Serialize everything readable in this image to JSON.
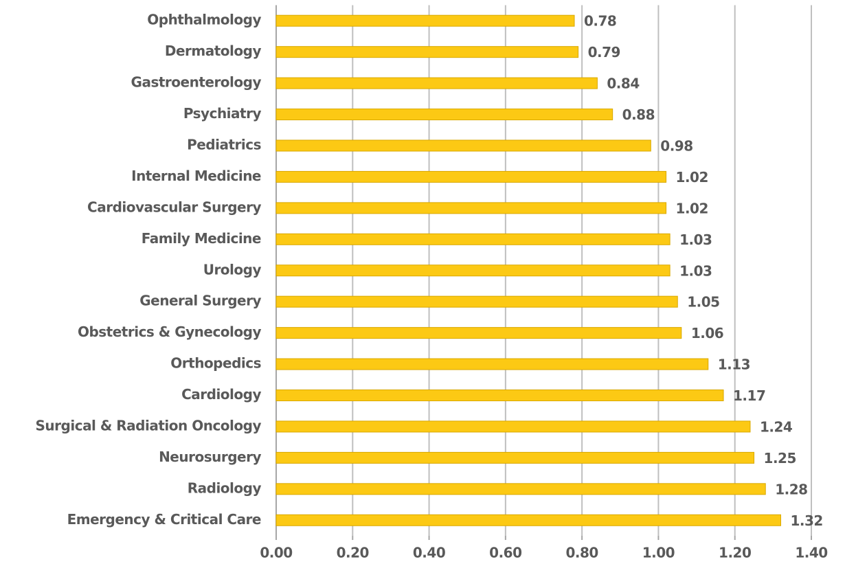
{
  "chart_data": {
    "type": "barh",
    "categories": [
      "Ophthalmology",
      "Dermatology",
      "Gastroenterology",
      "Psychiatry",
      "Pediatrics",
      "Internal Medicine",
      "Cardiovascular Surgery",
      "Family Medicine",
      "Urology",
      "General Surgery",
      "Obstetrics & Gynecology",
      "Orthopedics",
      "Cardiology",
      "Surgical & Radiation Oncology",
      "Neurosurgery",
      "Radiology",
      "Emergency & Critical Care"
    ],
    "values": [
      0.78,
      0.79,
      0.84,
      0.88,
      0.98,
      1.02,
      1.02,
      1.03,
      1.03,
      1.05,
      1.06,
      1.13,
      1.17,
      1.24,
      1.25,
      1.28,
      1.32
    ],
    "color": "#fcc914",
    "xlim": [
      0,
      1.4
    ],
    "xticks": [
      {
        "value": 0,
        "label": "0.00"
      },
      {
        "value": 0.2,
        "label": "0.20"
      },
      {
        "value": 0.4,
        "label": "0.40"
      },
      {
        "value": 0.6,
        "label": "0.60"
      },
      {
        "value": 0.8,
        "label": "0.80"
      },
      {
        "value": 1.0,
        "label": "1.00"
      },
      {
        "value": 1.2,
        "label": "1.20"
      },
      {
        "value": 1.4,
        "label": "1.40"
      }
    ],
    "grid": true
  }
}
